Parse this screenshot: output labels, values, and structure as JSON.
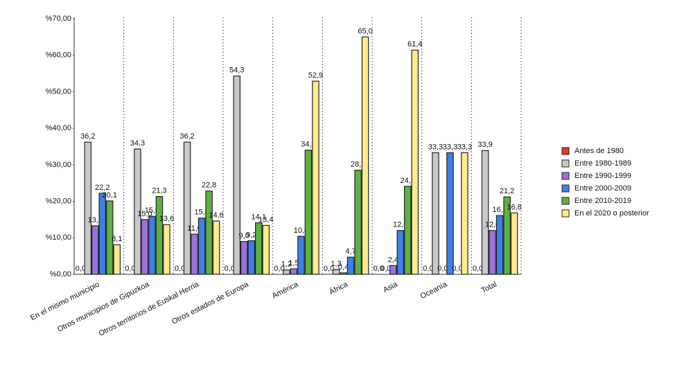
{
  "chart_data": {
    "type": "bar",
    "categories": [
      "En el mismo municipio",
      "Otros municipios de Gipuzkoa",
      "Otros territorios de Euskal Herria",
      "Otros estados de Europa",
      "América",
      "África",
      "Asia",
      "Oceanía",
      "Total"
    ],
    "series": [
      {
        "name": "Antes de 1980",
        "color": "#e8382b",
        "values": [
          0,
          0,
          0,
          0,
          0,
          0,
          0,
          0,
          0
        ],
        "value_labels": [
          "0,0",
          "0,0",
          "0,0",
          "0,0",
          "0,0",
          "0,0",
          "0,0",
          "0,0",
          "0,0"
        ]
      },
      {
        "name": "Entre 1980-1989",
        "color": "#c9c9c9",
        "values": [
          36.2,
          34.3,
          36.2,
          54.3,
          1.2,
          1.3,
          0,
          33.3,
          33.9
        ],
        "value_labels": [
          "36,2",
          "34,3",
          "36,2",
          "54,3",
          "1,2",
          "1,3",
          "0,0",
          "33,3",
          "33,9"
        ]
      },
      {
        "name": "Entre 1990-1999",
        "color": "#9b72da",
        "values": [
          13.3,
          15.0,
          11.0,
          9.0,
          1.5,
          0.4,
          2.4,
          0,
          12.0
        ],
        "value_labels": [
          "13,3",
          "15,0",
          "11,0",
          "9,0",
          "1,5",
          "0,4",
          "2,4",
          "0,0",
          "12,0"
        ]
      },
      {
        "name": "Entre 2000-2009",
        "color": "#3c80e8",
        "values": [
          22.2,
          15.9,
          15.4,
          9.2,
          10.4,
          4.7,
          12.0,
          33.3,
          16.1
        ],
        "value_labels": [
          "22,2",
          "15,9",
          "15,4",
          "9,2",
          "10,4",
          "4,7",
          "12,0",
          "33,3",
          "16,1"
        ]
      },
      {
        "name": "Entre 2010-2019",
        "color": "#5db041",
        "values": [
          20.1,
          21.3,
          22.8,
          14.1,
          34.0,
          28.5,
          24.1,
          0,
          21.2
        ],
        "value_labels": [
          "20,1",
          "21,3",
          "22,8",
          "14,1",
          "34,0",
          "28,5",
          "24,1",
          "0,0",
          "21,2"
        ]
      },
      {
        "name": "En el 2020 o posterior",
        "color": "#ffea8c",
        "values": [
          8.1,
          13.6,
          14.6,
          13.4,
          52.9,
          65.0,
          61.4,
          33.3,
          16.8
        ],
        "value_labels": [
          "8,1",
          "13,6",
          "14,6",
          "13,4",
          "52,9",
          "65,0",
          "61,4",
          "33,3",
          "16,8"
        ]
      }
    ],
    "ylim": [
      0,
      70
    ],
    "yticks": [
      {
        "value": 0,
        "label": "%0,00"
      },
      {
        "value": 10,
        "label": "%10,00"
      },
      {
        "value": 20,
        "label": "%20,00"
      },
      {
        "value": 30,
        "label": "%30,00"
      },
      {
        "value": 40,
        "label": "%40,00"
      },
      {
        "value": 50,
        "label": "%50,00"
      },
      {
        "value": 60,
        "label": "%60,00"
      },
      {
        "value": 70,
        "label": "%70,00"
      }
    ],
    "grid": true,
    "legend": "right"
  }
}
